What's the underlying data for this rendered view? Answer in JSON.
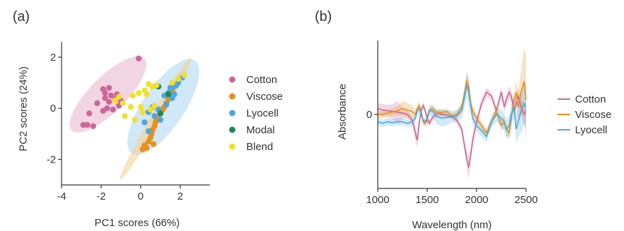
{
  "chart_data": [
    {
      "panel_label": "(a)",
      "type": "scatter",
      "xlabel": "PC1 scores (66%)",
      "ylabel": "PC2 scores (24%)",
      "xlim": [
        -4,
        3.5
      ],
      "ylim": [
        -3,
        2.6
      ],
      "xticks": [
        -4,
        -2,
        0,
        2
      ],
      "yticks": [
        -2,
        0,
        2
      ],
      "xtick_labels": [
        "-4",
        "-2",
        "0",
        "2"
      ],
      "ytick_labels": [
        "-2",
        "0",
        "2"
      ],
      "legend_position": "right",
      "series": [
        {
          "name": "Cotton",
          "color": "#cc6699",
          "x": [
            -0.1,
            -1.9,
            -1.6,
            -1.2,
            -1.5,
            -1.8,
            -1.3,
            -1.0,
            -2.2,
            -1.7,
            -1.4,
            -1.9,
            -2.6,
            -2.9,
            -2.7,
            -2.4,
            -1.6,
            -1.1,
            -1.8
          ],
          "y": [
            1.95,
            0.75,
            0.8,
            0.55,
            0.5,
            0.4,
            0.35,
            0.3,
            0.2,
            0.0,
            -0.05,
            -0.1,
            -0.2,
            -0.65,
            -0.65,
            -0.7,
            0.25,
            0.1,
            0.6
          ]
        },
        {
          "name": "Viscose",
          "color": "#e8901a",
          "x": [
            0.1,
            0.3,
            0.4,
            0.5,
            0.55,
            0.6,
            0.7,
            0.75,
            0.8,
            0.9,
            1.0,
            1.1,
            1.2,
            1.3,
            1.4,
            1.5,
            1.6,
            0.65,
            0.2
          ],
          "y": [
            -1.6,
            -1.55,
            -1.3,
            -1.15,
            -1.0,
            -0.85,
            -0.7,
            -0.55,
            -0.45,
            -0.35,
            -0.2,
            -0.05,
            0.05,
            0.2,
            0.35,
            0.5,
            0.7,
            -1.4,
            -1.45
          ]
        },
        {
          "name": "Lyocell",
          "color": "#4ea6dc",
          "x": [
            1.9,
            2.1,
            1.7,
            1.5,
            1.4,
            1.2,
            1.6,
            1.3,
            0.4,
            0.7,
            0.9,
            0.6,
            0.2,
            0.4,
            1.0,
            1.8,
            1.7
          ],
          "y": [
            1.0,
            1.2,
            0.85,
            0.8,
            0.6,
            0.5,
            0.4,
            0.15,
            -0.15,
            -0.3,
            -0.05,
            0.05,
            -0.55,
            -0.9,
            -0.45,
            0.9,
            0.55
          ]
        },
        {
          "name": "Modal",
          "color": "#1a8a5a",
          "x": [
            0.9,
            1.4,
            1.0
          ],
          "y": [
            0.85,
            0.55,
            -0.2
          ]
        },
        {
          "name": "Blend",
          "color": "#f0e030",
          "x": [
            2.2,
            1.9,
            1.6,
            0.4,
            0.6,
            0.8,
            0.2,
            -0.1,
            0.3,
            -0.4,
            -1.1,
            -1.3,
            -0.9,
            -0.5,
            0.0,
            0.5,
            -0.3,
            -0.8,
            0.1,
            0.7
          ],
          "y": [
            1.3,
            1.15,
            1.0,
            0.95,
            0.85,
            0.9,
            0.7,
            0.6,
            0.55,
            0.5,
            0.45,
            0.3,
            0.2,
            0.05,
            0.05,
            -0.05,
            -0.45,
            -0.3,
            -0.15,
            0.1
          ]
        }
      ],
      "confidence_ellipses": [
        {
          "series": "Cotton",
          "center": [
            -1.65,
            0.55
          ],
          "semi_axes": [
            0.9,
            2.0
          ],
          "angle_deg": 45,
          "color": "#e8b3cc"
        },
        {
          "series": "Lyocell",
          "center": [
            1.15,
            0.05
          ],
          "semi_axes": [
            1.05,
            2.2
          ],
          "angle_deg": 34,
          "color": "#a9d5f0"
        },
        {
          "series": "Viscose",
          "center": [
            0.75,
            -0.4
          ],
          "semi_axes": [
            0.25,
            2.75
          ],
          "angle_deg": 30,
          "color": "#f6cd8a"
        }
      ]
    },
    {
      "panel_label": "(b)",
      "type": "line",
      "xlabel": "Wavelength (nm)",
      "ylabel": "Absorbance",
      "xlim": [
        1000,
        2500
      ],
      "ylim": [
        -1.0,
        1.0
      ],
      "xticks": [
        1000,
        1500,
        2000,
        2500
      ],
      "xtick_labels": [
        "1000",
        "1500",
        "2000",
        "2500"
      ],
      "yticks": [
        0
      ],
      "ytick_labels": [
        "0"
      ],
      "legend_position": "right",
      "x": [
        1000,
        1050,
        1100,
        1150,
        1200,
        1250,
        1300,
        1350,
        1380,
        1400,
        1420,
        1440,
        1460,
        1480,
        1500,
        1520,
        1550,
        1600,
        1650,
        1700,
        1750,
        1800,
        1850,
        1880,
        1900,
        1920,
        1940,
        1960,
        2000,
        2050,
        2100,
        2150,
        2200,
        2250,
        2280,
        2300,
        2330,
        2350,
        2380,
        2400,
        2420,
        2450,
        2480,
        2500
      ],
      "series": [
        {
          "name": "Cotton",
          "color": "#cc6699",
          "y": [
            0.08,
            0.06,
            0.05,
            0.04,
            0.03,
            0.02,
            0.0,
            -0.08,
            -0.25,
            -0.35,
            -0.1,
            0.05,
            0.12,
            0.05,
            -0.05,
            -0.12,
            -0.05,
            0.02,
            0.0,
            -0.01,
            -0.03,
            -0.08,
            -0.2,
            -0.45,
            -0.6,
            -0.72,
            -0.55,
            -0.35,
            -0.1,
            0.15,
            0.3,
            0.25,
            0.05,
            0.3,
            0.1,
            0.2,
            0.3,
            0.25,
            0.05,
            0.15,
            0.25,
            0.1,
            0.0,
            0.05
          ],
          "band": [
            0.08,
            0.08,
            0.08,
            0.1,
            0.15,
            0.08,
            0.05,
            0.06,
            0.1,
            0.1,
            0.08,
            0.06,
            0.05,
            0.05,
            0.05,
            0.05,
            0.05,
            0.04,
            0.03,
            0.03,
            0.03,
            0.04,
            0.05,
            0.08,
            0.12,
            0.15,
            0.1,
            0.08,
            0.06,
            0.06,
            0.06,
            0.06,
            0.06,
            0.08,
            0.08,
            0.08,
            0.08,
            0.08,
            0.1,
            0.1,
            0.12,
            0.12,
            0.15,
            0.15
          ]
        },
        {
          "name": "Viscose",
          "color": "#e8901a",
          "y": [
            0.0,
            0.0,
            0.02,
            0.03,
            0.05,
            0.08,
            0.06,
            0.04,
            0.0,
            0.08,
            0.12,
            0.03,
            -0.1,
            -0.12,
            -0.08,
            0.05,
            0.08,
            0.02,
            0.03,
            0.04,
            -0.02,
            0.0,
            0.1,
            0.3,
            0.45,
            0.38,
            0.15,
            0.05,
            -0.05,
            -0.15,
            -0.25,
            -0.1,
            0.05,
            -0.15,
            -0.1,
            -0.2,
            -0.25,
            -0.05,
            0.2,
            0.3,
            0.1,
            0.3,
            0.45,
            0.2
          ],
          "band": [
            0.05,
            0.05,
            0.05,
            0.05,
            0.06,
            0.1,
            0.1,
            0.08,
            0.06,
            0.06,
            0.06,
            0.05,
            0.05,
            0.05,
            0.05,
            0.05,
            0.05,
            0.04,
            0.04,
            0.04,
            0.04,
            0.05,
            0.06,
            0.08,
            0.1,
            0.1,
            0.08,
            0.06,
            0.06,
            0.06,
            0.06,
            0.06,
            0.06,
            0.08,
            0.08,
            0.08,
            0.08,
            0.1,
            0.1,
            0.15,
            0.2,
            0.3,
            0.45,
            0.6
          ]
        },
        {
          "name": "Lyocell",
          "color": "#4ea6dc",
          "y": [
            -0.1,
            -0.12,
            -0.1,
            -0.11,
            -0.1,
            -0.1,
            -0.12,
            -0.1,
            -0.05,
            0.05,
            0.08,
            0.0,
            -0.08,
            -0.1,
            -0.05,
            0.05,
            0.05,
            -0.03,
            -0.05,
            -0.04,
            -0.03,
            -0.02,
            0.05,
            0.25,
            0.4,
            0.3,
            0.12,
            -0.05,
            -0.15,
            -0.22,
            -0.3,
            -0.1,
            0.0,
            -0.05,
            -0.1,
            -0.2,
            -0.15,
            0.0,
            0.1,
            -0.2,
            -0.1,
            0.05,
            0.15,
            0.1
          ],
          "band": [
            0.05,
            0.05,
            0.05,
            0.05,
            0.05,
            0.05,
            0.05,
            0.05,
            0.05,
            0.06,
            0.06,
            0.05,
            0.05,
            0.05,
            0.05,
            0.06,
            0.08,
            0.1,
            0.12,
            0.1,
            0.08,
            0.08,
            0.1,
            0.15,
            0.18,
            0.2,
            0.12,
            0.08,
            0.08,
            0.08,
            0.08,
            0.08,
            0.1,
            0.12,
            0.12,
            0.12,
            0.15,
            0.15,
            0.15,
            0.2,
            0.2,
            0.3,
            0.3,
            0.3
          ]
        }
      ]
    }
  ]
}
